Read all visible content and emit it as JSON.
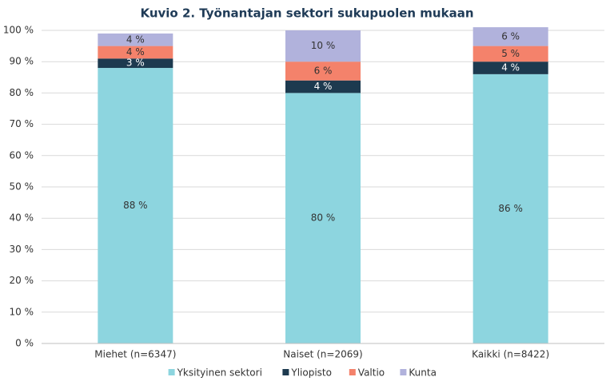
{
  "chart_data": {
    "type": "stacked_bar",
    "title": "Kuvio 2. Työnantajan sektori sukupuolen mukaan",
    "categories": [
      "Miehet (n=6347)",
      "Naiset (n=2069)",
      "Kaikki (n=8422)"
    ],
    "series": [
      {
        "name": "Yksityinen sektori",
        "color": "#8dd5df",
        "values": [
          88,
          80,
          86
        ],
        "value_labels": [
          "88 %",
          "80 %",
          "86 %"
        ]
      },
      {
        "name": "Yliopisto",
        "color": "#1d3a4f",
        "values": [
          3,
          4,
          4
        ],
        "value_labels": [
          "3 %",
          "4 %",
          "4 %"
        ]
      },
      {
        "name": "Valtio",
        "color": "#f4826b",
        "values": [
          4,
          6,
          5
        ],
        "value_labels": [
          "4 %",
          "6 %",
          "5 %"
        ]
      },
      {
        "name": "Kunta",
        "color": "#b1b2dc",
        "values": [
          4,
          10,
          6
        ],
        "value_labels": [
          "4 %",
          "10 %",
          "6 %"
        ]
      }
    ],
    "ylim": [
      0,
      100
    ],
    "yticks": [
      {
        "value": 0,
        "label": "0 %"
      },
      {
        "value": 10,
        "label": "10 %"
      },
      {
        "value": 20,
        "label": "20 %"
      },
      {
        "value": 30,
        "label": "30 %"
      },
      {
        "value": 40,
        "label": "40 %"
      },
      {
        "value": 50,
        "label": "50 %"
      },
      {
        "value": 60,
        "label": "60 %"
      },
      {
        "value": 70,
        "label": "70 %"
      },
      {
        "value": 80,
        "label": "80 %"
      },
      {
        "value": 90,
        "label": "90 %"
      },
      {
        "value": 100,
        "label": "100 %"
      }
    ],
    "grid": true,
    "legend": "bottom"
  }
}
